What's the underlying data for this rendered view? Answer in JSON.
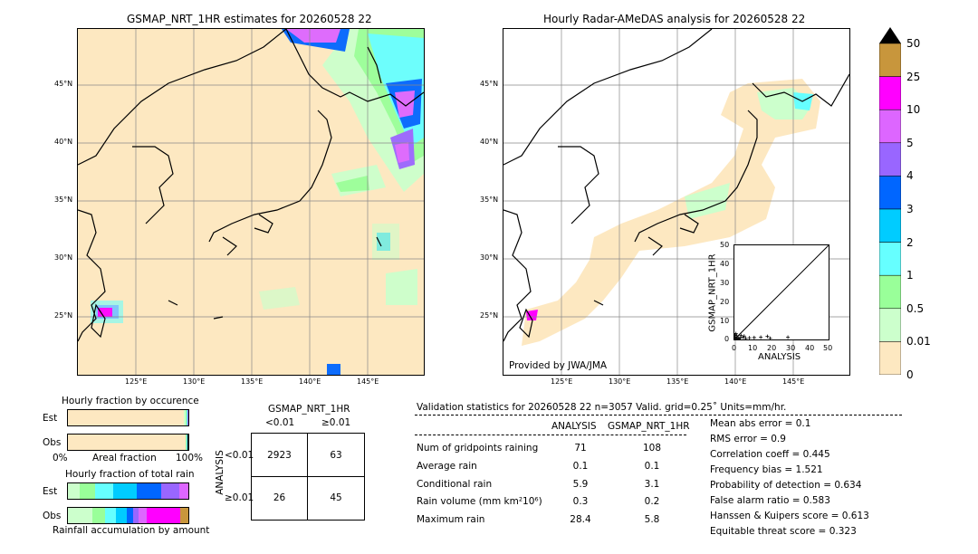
{
  "left_map": {
    "title": "GSMAP_NRT_1HR estimates for 20260528 22",
    "lat_labels": [
      "45°N",
      "40°N",
      "35°N",
      "30°N",
      "25°N"
    ],
    "lon_labels": [
      "125°E",
      "130°E",
      "135°E",
      "140°E",
      "145°E"
    ]
  },
  "right_map": {
    "title": "Hourly Radar-AMeDAS analysis for 20260528 22",
    "lat_labels": [
      "45°N",
      "40°N",
      "35°N",
      "30°N",
      "25°N"
    ],
    "lon_labels": [
      "125°E",
      "130°E",
      "135°E",
      "140°E",
      "145°E"
    ],
    "credit": "Provided by JWA/JMA"
  },
  "colorbar": {
    "labels": [
      "50",
      "25",
      "10",
      "5",
      "4",
      "3",
      "2",
      "1",
      "0.5",
      "0.01",
      "0"
    ],
    "colors": [
      "#c8963c",
      "#ff00ff",
      "#dd66ff",
      "#9966ff",
      "#0066ff",
      "#00ccff",
      "#66ffff",
      "#99ff99",
      "#ccffcc",
      "#fde8c1"
    ]
  },
  "chart_data": [
    {
      "type": "scatter",
      "xlabel": "ANALYSIS",
      "ylabel": "GSMAP_NRT_1HR",
      "xlim": [
        0,
        50
      ],
      "ylim": [
        0,
        50
      ],
      "ticks": [
        "0",
        "10",
        "20",
        "30",
        "40",
        "50"
      ],
      "points": [
        [
          0.3,
          0.5
        ],
        [
          0.6,
          1.2
        ],
        [
          1.0,
          0.4
        ],
        [
          1.3,
          2.0
        ],
        [
          2.0,
          1.0
        ],
        [
          2.5,
          0.3
        ],
        [
          0.8,
          3.1
        ],
        [
          3.0,
          0.8
        ],
        [
          4.5,
          1.2
        ],
        [
          6.0,
          0.5
        ],
        [
          8.0,
          0.9
        ],
        [
          10.5,
          1.0
        ],
        [
          14.0,
          1.2
        ],
        [
          17.5,
          1.6
        ],
        [
          19.0,
          0.6
        ],
        [
          28.4,
          1.2
        ],
        [
          1.5,
          0.2
        ],
        [
          0.2,
          2.4
        ],
        [
          3.5,
          2.1
        ],
        [
          5.2,
          1.8
        ]
      ]
    },
    {
      "type": "bar",
      "title": "Hourly fraction by occurence",
      "categories": [
        "Est",
        "Obs"
      ],
      "xlabel_left": "0%",
      "xlabel_mid": "Areal fraction",
      "xlabel_right": "100%",
      "series": [
        {
          "color": "#fde8c1",
          "values": [
            0.965,
            0.975
          ]
        },
        {
          "color": "#ccffcc",
          "values": [
            0.01,
            0.005
          ]
        },
        {
          "color": "#99ff99",
          "values": [
            0.008,
            0.005
          ]
        },
        {
          "color": "#66ffff",
          "values": [
            0.006,
            0.004
          ]
        },
        {
          "color": "#00ccff",
          "values": [
            0.004,
            0.003
          ]
        },
        {
          "color": "#0066ff",
          "values": [
            0.003,
            0.002
          ]
        },
        {
          "color": "#9966ff",
          "values": [
            0.002,
            0.002
          ]
        },
        {
          "color": "#000000",
          "values": [
            0.002,
            0.004
          ]
        }
      ]
    },
    {
      "type": "bar",
      "title": "Hourly fraction of total rain",
      "categories": [
        "Est",
        "Obs"
      ],
      "xlabel": "Rainfall accumulation by amount",
      "series": [
        {
          "color": "#ccffcc",
          "values": [
            0.08,
            0.18
          ]
        },
        {
          "color": "#99ff99",
          "values": [
            0.1,
            0.1
          ]
        },
        {
          "color": "#66ffff",
          "values": [
            0.12,
            0.08
          ]
        },
        {
          "color": "#00ccff",
          "values": [
            0.16,
            0.08
          ]
        },
        {
          "color": "#0066ff",
          "values": [
            0.16,
            0.05
          ]
        },
        {
          "color": "#9966ff",
          "values": [
            0.12,
            0.04
          ]
        },
        {
          "color": "#dd66ff",
          "values": [
            0.06,
            0.06
          ]
        },
        {
          "color": "#ff00ff",
          "values": [
            0.0,
            0.25
          ]
        },
        {
          "color": "#c8963c",
          "values": [
            0.0,
            0.06
          ]
        }
      ]
    }
  ],
  "contingency": {
    "title": "GSMAP_NRT_1HR",
    "col_lt": "<0.01",
    "col_ge": "≥0.01",
    "row_axis": "ANALYSIS",
    "row_lt": "<0.01",
    "row_ge": "≥0.01",
    "cells": [
      "2923",
      "63",
      "26",
      "45"
    ]
  },
  "validation": {
    "header": "Validation statistics for 20260528 22  n=3057 Valid. grid=0.25˚ Units=mm/hr.",
    "col_analysis": "ANALYSIS",
    "col_gsmap": "GSMAP_NRT_1HR",
    "rows": [
      {
        "label": "Num of gridpoints raining",
        "a": "71",
        "g": "108"
      },
      {
        "label": "Average rain",
        "a": "0.1",
        "g": "0.1"
      },
      {
        "label": "Conditional rain",
        "a": "5.9",
        "g": "3.1"
      },
      {
        "label": "Rain volume (mm km²10⁶)",
        "a": "0.3",
        "g": "0.2"
      },
      {
        "label": "Maximum rain",
        "a": "28.4",
        "g": "5.8"
      }
    ],
    "scores": [
      "Mean abs error =    0.1",
      "RMS error =    0.9",
      "Correlation coeff =  0.445",
      "Frequency bias =  1.521",
      "Probability of detection =  0.634",
      "False alarm ratio =  0.583",
      "Hanssen & Kuipers score =  0.613",
      "Equitable threat score =  0.323"
    ]
  }
}
